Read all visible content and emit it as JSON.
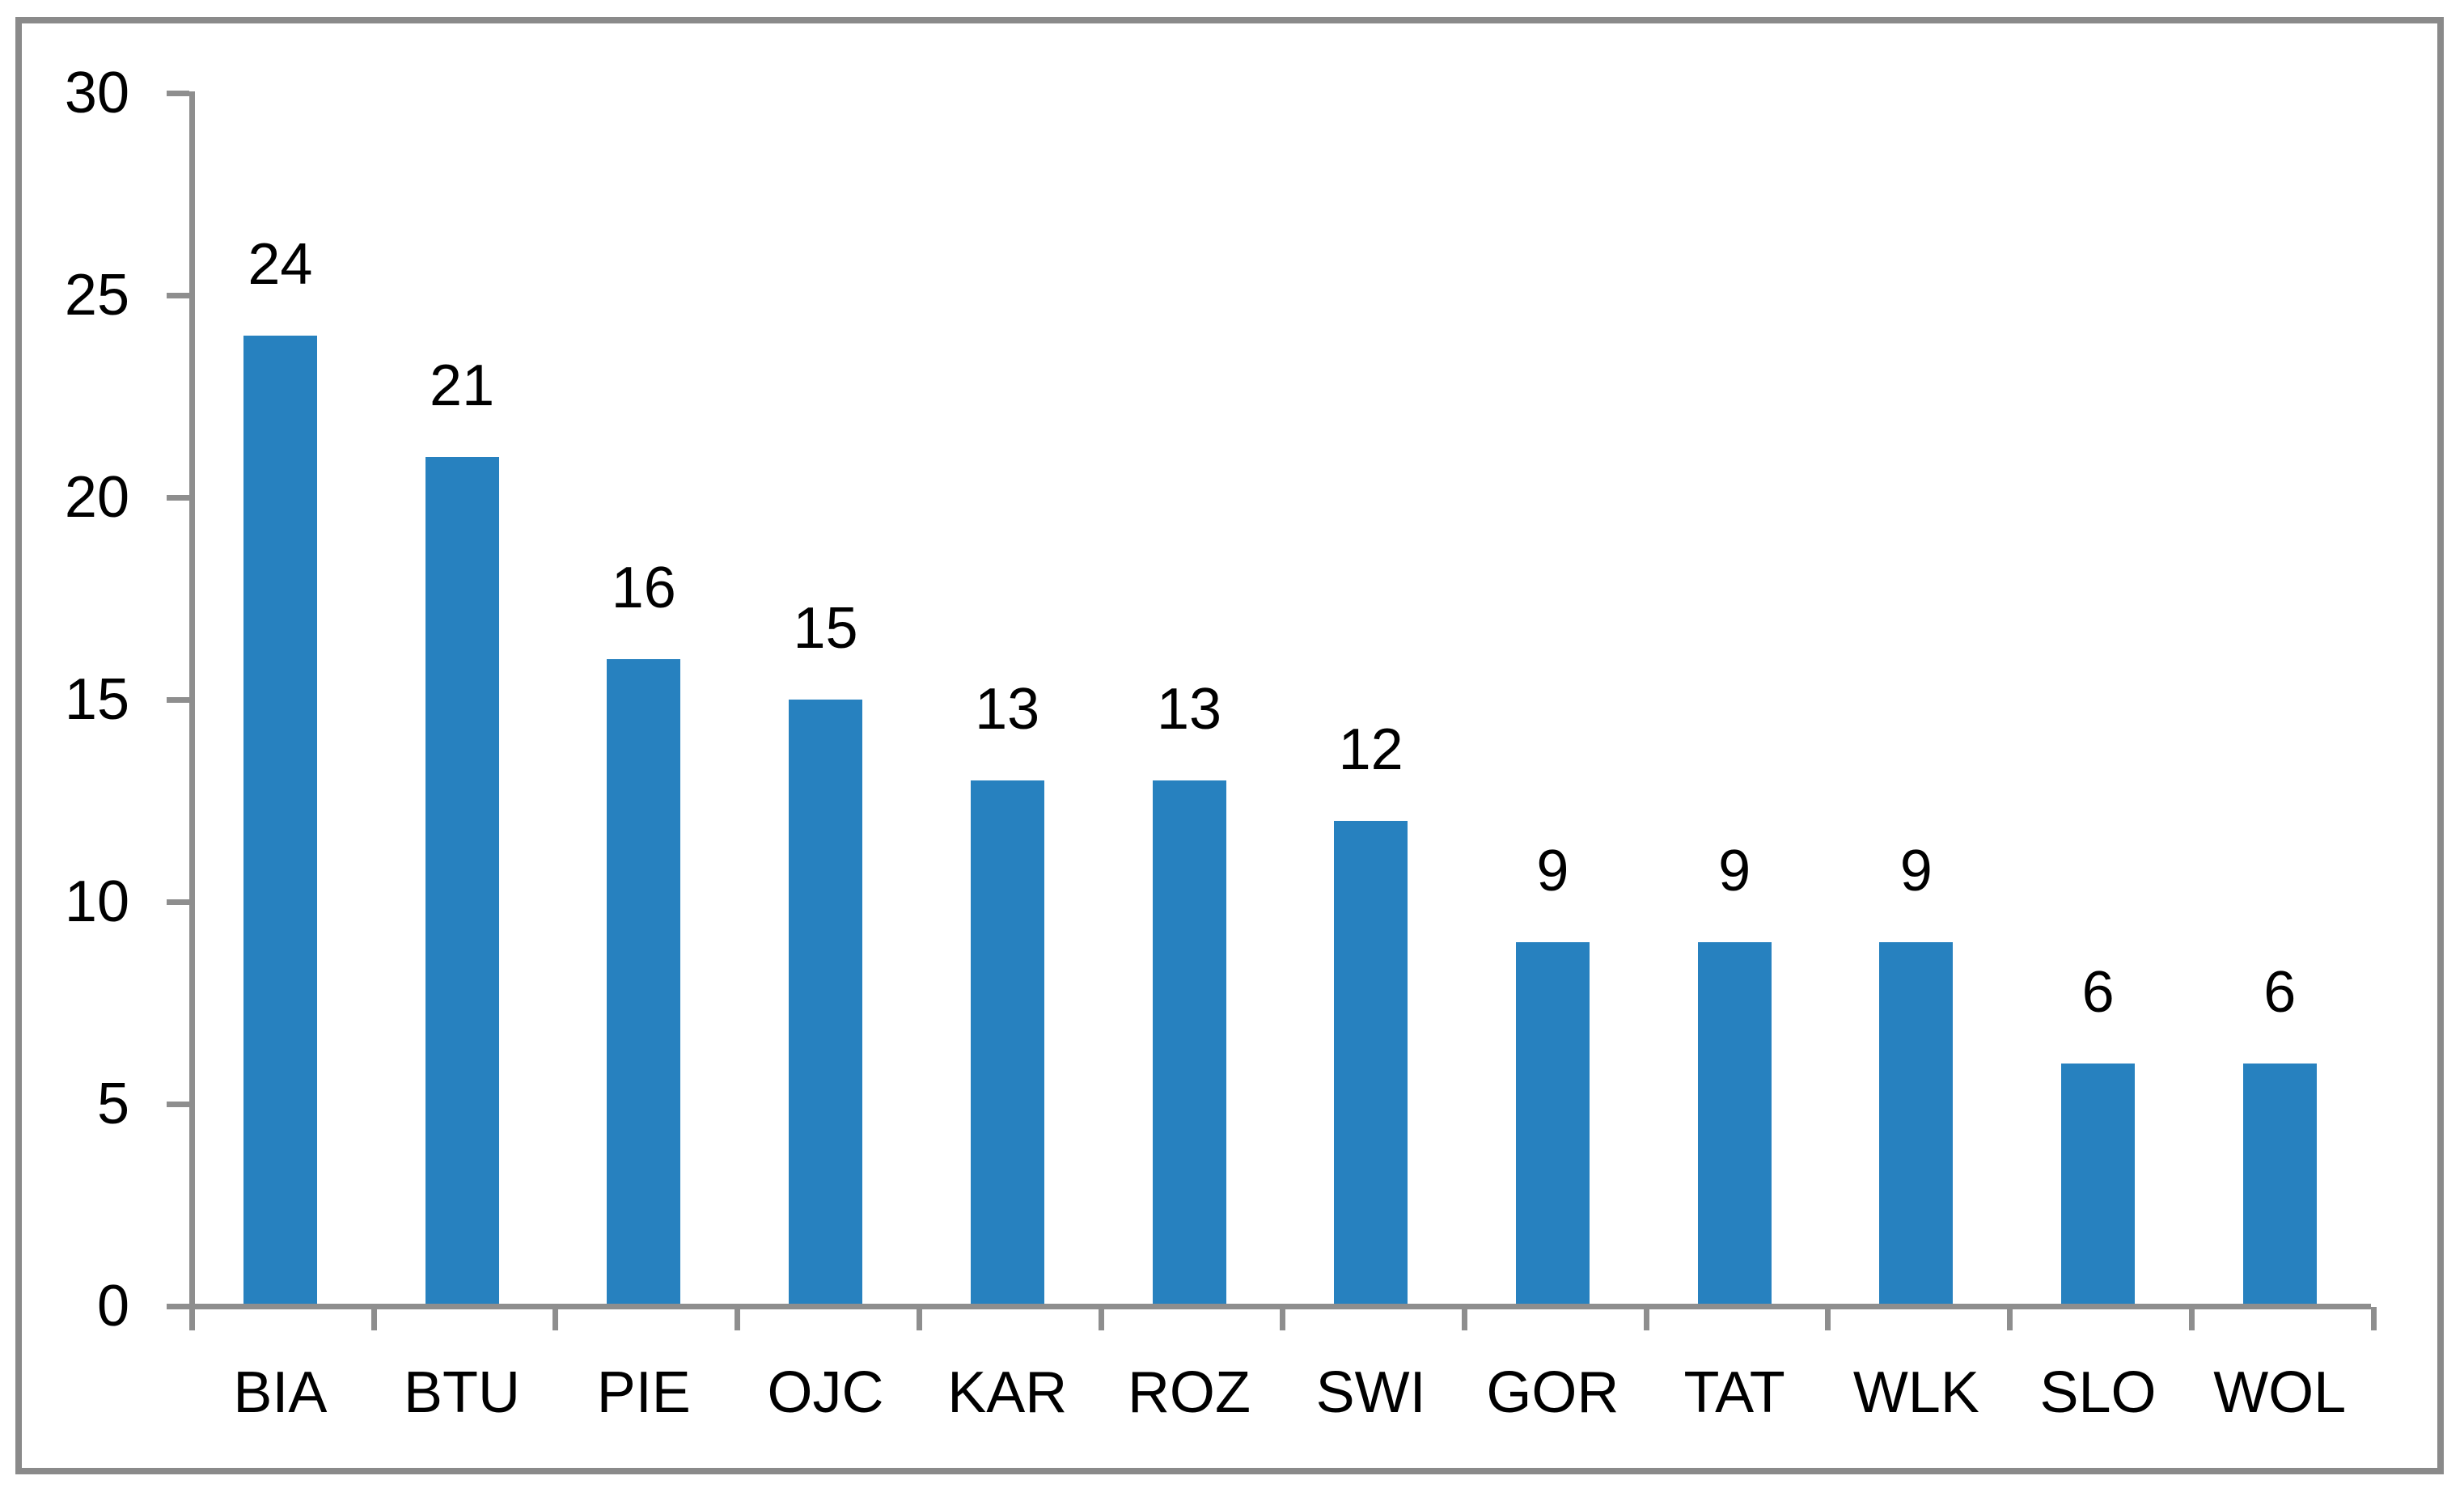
{
  "chart_data": {
    "type": "bar",
    "title": "",
    "xlabel": "",
    "ylabel": "",
    "categories": [
      "BIA",
      "BTU",
      "PIE",
      "OJC",
      "KAR",
      "ROZ",
      "SWI",
      "GOR",
      "TAT",
      "WLK",
      "SLO",
      "WOL"
    ],
    "values": [
      24,
      21,
      16,
      15,
      13,
      13,
      12,
      9,
      9,
      9,
      6,
      6
    ],
    "value_labels": [
      "24",
      "21",
      "16",
      "15",
      "13",
      "13",
      "12",
      "9",
      "9",
      "9",
      "6",
      "6"
    ],
    "yticks": [
      "30",
      "25",
      "20",
      "15",
      "10",
      "5",
      "0"
    ],
    "ytick_values": [
      30,
      25,
      20,
      15,
      10,
      5,
      0
    ],
    "ylim": [
      0,
      30
    ],
    "grid": false,
    "legend": false,
    "data_labels_shown": true,
    "colors": {
      "bar": "#2781BF",
      "axis": "#8E8E8E",
      "frame_border": "#8A8A8A",
      "text": "#000000",
      "background": "#FFFFFF"
    }
  }
}
